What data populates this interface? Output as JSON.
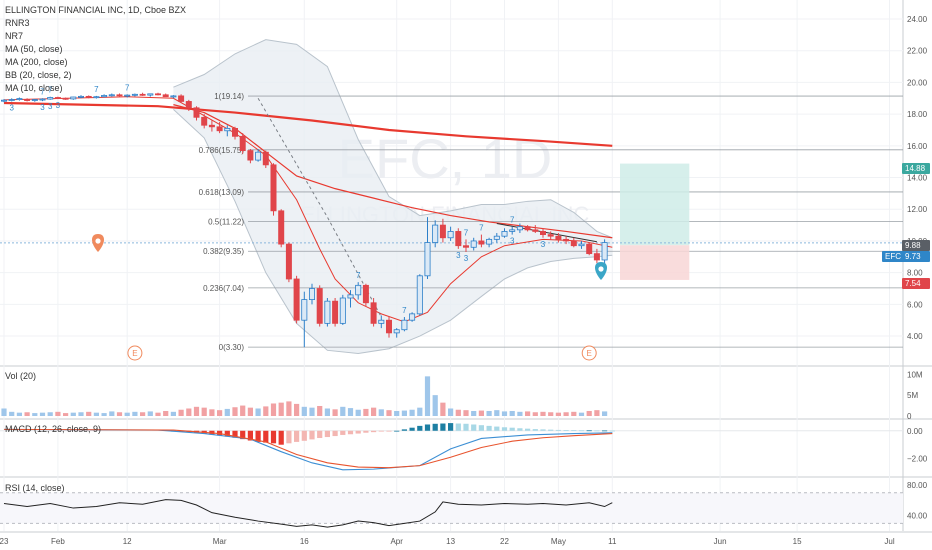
{
  "header": {
    "title": "ELLINGTON FINANCIAL INC, 1D, Cboe BZX",
    "studies": [
      "RNR3",
      "NR7",
      "MA (50, close)",
      "MA (200, close)",
      "BB (20, close, 2)",
      "MA (10, close)"
    ]
  },
  "watermark": {
    "symbol": "EFC, 1D",
    "name": "ELLINGTON FINANCIAL INC"
  },
  "price_labels": {
    "target": "14.88",
    "last": "9.88",
    "symbol": "EFC",
    "symbol_price": "9.73",
    "stop": "7.54"
  },
  "colors": {
    "up": "#2c7fc9",
    "down": "#e0454a",
    "ma_red": "#e8392f",
    "bb_fill": "#e9eef3",
    "target_fill": "#cfece8",
    "stop_fill": "#f8d6d6",
    "macd_line": "#3d8fd4",
    "signal_line": "#e8542e",
    "rsi_line": "#222222",
    "event_marker": "#f08a5d",
    "alert_marker": "#3aa6c7"
  },
  "volume_panel": {
    "label": "Vol (20)",
    "ticks": [
      "10M",
      "5M",
      "0"
    ]
  },
  "macd_panel": {
    "label": "MACD (12, 26, close, 9)",
    "ticks": [
      "0.00",
      "−2.00"
    ]
  },
  "rsi_panel": {
    "label": "RSI (14, close)",
    "ticks": [
      "80.00",
      "40.00"
    ]
  },
  "markers": {
    "event": "E"
  },
  "chart_data": {
    "type": "candlestick",
    "title": "ELLINGTON FINANCIAL INC, 1D, Cboe BZX",
    "price_axis": {
      "ticks": [
        "24.00",
        "22.00",
        "20.00",
        "18.00",
        "16.00",
        "14.00",
        "12.00",
        "10.00",
        "8.00",
        "6.00",
        "4.00"
      ],
      "ylim": [
        2.3,
        25.2
      ]
    },
    "x_ticks": [
      {
        "label": "23",
        "day": 0
      },
      {
        "label": "Feb",
        "day": 7
      },
      {
        "label": "12",
        "day": 16
      },
      {
        "label": "Mar",
        "day": 28
      },
      {
        "label": "16",
        "day": 39
      },
      {
        "label": "Apr",
        "day": 51
      },
      {
        "label": "13",
        "day": 58
      },
      {
        "label": "22",
        "day": 65
      },
      {
        "label": "May",
        "day": 72
      },
      {
        "label": "11",
        "day": 79
      },
      {
        "label": "Jun",
        "day": 93
      },
      {
        "label": "15",
        "day": 103
      },
      {
        "label": "Jul",
        "day": 115
      }
    ],
    "candles": [
      [
        18.85,
        18.95,
        18.75,
        18.88
      ],
      [
        18.9,
        19.0,
        18.8,
        18.92
      ],
      [
        18.95,
        19.05,
        18.85,
        18.98
      ],
      [
        18.92,
        19.0,
        18.8,
        18.87
      ],
      [
        18.87,
        18.96,
        18.78,
        18.92
      ],
      [
        18.9,
        19.0,
        18.82,
        18.95
      ],
      [
        18.95,
        19.1,
        18.9,
        19.05
      ],
      [
        19.05,
        19.1,
        18.95,
        19.0
      ],
      [
        19.0,
        19.05,
        18.9,
        18.96
      ],
      [
        18.96,
        19.1,
        18.9,
        19.08
      ],
      [
        19.08,
        19.2,
        19.0,
        19.12
      ],
      [
        19.12,
        19.18,
        19.0,
        19.05
      ],
      [
        19.05,
        19.15,
        18.98,
        19.1
      ],
      [
        19.1,
        19.25,
        19.05,
        19.18
      ],
      [
        19.18,
        19.3,
        19.1,
        19.22
      ],
      [
        19.22,
        19.3,
        19.12,
        19.16
      ],
      [
        19.16,
        19.25,
        19.05,
        19.2
      ],
      [
        19.2,
        19.3,
        19.12,
        19.25
      ],
      [
        19.25,
        19.35,
        19.15,
        19.2
      ],
      [
        19.2,
        19.3,
        19.1,
        19.28
      ],
      [
        19.28,
        19.35,
        19.18,
        19.22
      ],
      [
        19.22,
        19.3,
        19.08,
        19.1
      ],
      [
        19.1,
        19.2,
        19.0,
        19.15
      ],
      [
        19.15,
        19.25,
        18.7,
        18.8
      ],
      [
        18.8,
        18.9,
        18.2,
        18.4
      ],
      [
        18.4,
        18.5,
        17.6,
        17.8
      ],
      [
        17.8,
        18.0,
        17.1,
        17.3
      ],
      [
        17.3,
        17.6,
        16.9,
        17.2
      ],
      [
        17.2,
        17.5,
        16.8,
        16.95
      ],
      [
        16.95,
        17.3,
        16.6,
        17.1
      ],
      [
        17.1,
        17.2,
        16.4,
        16.6
      ],
      [
        16.6,
        16.8,
        15.5,
        15.7
      ],
      [
        15.7,
        15.8,
        14.9,
        15.1
      ],
      [
        15.1,
        15.8,
        15.0,
        15.6
      ],
      [
        15.6,
        15.7,
        14.6,
        14.8
      ],
      [
        14.8,
        14.9,
        11.6,
        11.9
      ],
      [
        11.9,
        12.0,
        9.6,
        9.8
      ],
      [
        9.8,
        9.9,
        7.4,
        7.6
      ],
      [
        7.6,
        7.8,
        4.8,
        5.0
      ],
      [
        5.0,
        6.8,
        3.3,
        6.3
      ],
      [
        6.3,
        7.3,
        6.0,
        7.0
      ],
      [
        7.0,
        7.2,
        4.6,
        4.8
      ],
      [
        4.8,
        6.4,
        4.6,
        6.2
      ],
      [
        6.2,
        6.4,
        4.6,
        4.8
      ],
      [
        4.8,
        6.6,
        4.7,
        6.4
      ],
      [
        6.4,
        6.9,
        5.8,
        6.6
      ],
      [
        6.6,
        7.4,
        6.3,
        7.2
      ],
      [
        7.2,
        7.3,
        5.9,
        6.1
      ],
      [
        6.1,
        6.4,
        4.6,
        4.8
      ],
      [
        4.8,
        5.3,
        4.5,
        5.0
      ],
      [
        5.0,
        5.2,
        3.9,
        4.2
      ],
      [
        4.2,
        4.5,
        3.9,
        4.4
      ],
      [
        4.4,
        5.2,
        4.3,
        5.0
      ],
      [
        5.0,
        5.5,
        4.9,
        5.4
      ],
      [
        5.4,
        7.9,
        5.3,
        7.8
      ],
      [
        7.8,
        11.5,
        7.6,
        9.9
      ],
      [
        9.9,
        11.3,
        9.6,
        11.0
      ],
      [
        11.0,
        11.4,
        9.9,
        10.2
      ],
      [
        10.2,
        10.9,
        10.0,
        10.6
      ],
      [
        10.6,
        10.8,
        9.5,
        9.7
      ],
      [
        9.7,
        10.1,
        9.3,
        9.6
      ],
      [
        9.6,
        10.2,
        9.4,
        10.0
      ],
      [
        10.0,
        10.4,
        9.6,
        9.8
      ],
      [
        9.8,
        10.2,
        9.6,
        10.1
      ],
      [
        10.1,
        10.5,
        9.9,
        10.3
      ],
      [
        10.3,
        10.8,
        10.2,
        10.6
      ],
      [
        10.6,
        10.9,
        10.4,
        10.7
      ],
      [
        10.7,
        11.1,
        10.5,
        10.9
      ],
      [
        10.9,
        11.0,
        10.6,
        10.7
      ],
      [
        10.7,
        11.0,
        10.5,
        10.6
      ],
      [
        10.6,
        10.8,
        10.2,
        10.4
      ],
      [
        10.4,
        10.6,
        10.1,
        10.3
      ],
      [
        10.3,
        10.5,
        9.9,
        10.1
      ],
      [
        10.1,
        10.3,
        9.8,
        10.0
      ],
      [
        10.0,
        10.2,
        9.6,
        9.7
      ],
      [
        9.7,
        10.0,
        9.5,
        9.8
      ],
      [
        9.8,
        9.9,
        9.1,
        9.2
      ],
      [
        9.2,
        9.5,
        8.6,
        8.8
      ],
      [
        8.8,
        10.1,
        8.4,
        9.9
      ]
    ],
    "lines": {
      "ma_long": [
        [
          0,
          18.7
        ],
        [
          20,
          18.5
        ],
        [
          30,
          18.1
        ],
        [
          40,
          17.6
        ],
        [
          50,
          17.0
        ],
        [
          60,
          16.6
        ],
        [
          70,
          16.3
        ],
        [
          79,
          16.0
        ]
      ],
      "ma_short": [
        [
          0,
          18.9
        ],
        [
          16,
          19.1
        ],
        [
          22,
          19.0
        ],
        [
          26,
          17.9
        ],
        [
          30,
          16.8
        ],
        [
          34,
          15.4
        ],
        [
          38,
          12.6
        ],
        [
          41,
          9.5
        ],
        [
          43,
          7.6
        ],
        [
          46,
          6.1
        ],
        [
          49,
          5.4
        ],
        [
          52,
          4.9
        ],
        [
          55,
          5.5
        ],
        [
          58,
          7.3
        ],
        [
          62,
          9.0
        ],
        [
          65,
          9.7
        ],
        [
          70,
          10.1
        ],
        [
          75,
          10.0
        ],
        [
          79,
          9.6
        ]
      ],
      "ma_50": [
        [
          22,
          18.6
        ],
        [
          26,
          18.1
        ],
        [
          30,
          17.1
        ],
        [
          34,
          15.6
        ],
        [
          38,
          14.1
        ],
        [
          43,
          13.3
        ],
        [
          48,
          12.7
        ],
        [
          53,
          12.1
        ],
        [
          58,
          11.6
        ],
        [
          63,
          11.2
        ],
        [
          68,
          10.9
        ],
        [
          73,
          10.6
        ],
        [
          79,
          10.2
        ]
      ],
      "bb_upper": [
        [
          22,
          19.7
        ],
        [
          26,
          20.5
        ],
        [
          30,
          21.8
        ],
        [
          34,
          22.7
        ],
        [
          38,
          22.4
        ],
        [
          42,
          21.0
        ],
        [
          46,
          16.4
        ],
        [
          50,
          12.8
        ],
        [
          54,
          11.6
        ],
        [
          58,
          11.9
        ],
        [
          62,
          12.3
        ],
        [
          65,
          12.3
        ],
        [
          68,
          12.5
        ],
        [
          71,
          12.6
        ],
        [
          74,
          11.8
        ],
        [
          77,
          10.6
        ],
        [
          79,
          10.2
        ]
      ],
      "bb_lower": [
        [
          22,
          18.3
        ],
        [
          26,
          16.5
        ],
        [
          30,
          12.5
        ],
        [
          34,
          8.0
        ],
        [
          38,
          4.8
        ],
        [
          42,
          3.1
        ],
        [
          46,
          2.9
        ],
        [
          50,
          3.2
        ],
        [
          54,
          4.0
        ],
        [
          58,
          5.0
        ],
        [
          62,
          6.5
        ],
        [
          65,
          7.6
        ],
        [
          68,
          8.3
        ],
        [
          71,
          8.7
        ],
        [
          74,
          8.9
        ],
        [
          77,
          9.0
        ],
        [
          79,
          9.1
        ]
      ],
      "trend_dashed": [
        [
          33,
          19.0
        ],
        [
          42,
          11.5
        ],
        [
          49,
          5.2
        ]
      ],
      "resistance": [
        [
          64,
          11.1
        ],
        [
          77,
          9.95
        ]
      ]
    },
    "fibonacci": [
      {
        "label": "1(19.14)",
        "value": 19.14
      },
      {
        "label": "0.786(15.75)",
        "value": 15.75
      },
      {
        "label": "0.618(13.09)",
        "value": 13.09
      },
      {
        "label": "0.5(11.22)",
        "value": 11.22
      },
      {
        "label": "0.382(9.35)",
        "value": 9.35
      },
      {
        "label": "0.236(7.04)",
        "value": 7.04
      },
      {
        "label": "0(3.30)",
        "value": 3.3
      }
    ],
    "position": {
      "entry": 9.73,
      "target": 14.88,
      "stop": 7.54,
      "from_day": 80,
      "to_day": 89
    },
    "candle_numbers": [
      {
        "day": 1,
        "text": "3",
        "pos": "below"
      },
      {
        "day": 5,
        "text": "3",
        "pos": "below"
      },
      {
        "day": 6,
        "text": "3",
        "pos": "below"
      },
      {
        "day": 7,
        "text": "3",
        "pos": "below"
      },
      {
        "day": 5,
        "text": "7",
        "pos": "above"
      },
      {
        "day": 6,
        "text": "7",
        "pos": "above"
      },
      {
        "day": 12,
        "text": "7",
        "pos": "above"
      },
      {
        "day": 16,
        "text": "7",
        "pos": "above"
      },
      {
        "day": 46,
        "text": "7",
        "pos": "above"
      },
      {
        "day": 52,
        "text": "7",
        "pos": "above"
      },
      {
        "day": 59,
        "text": "3",
        "pos": "below"
      },
      {
        "day": 60,
        "text": "3",
        "pos": "below"
      },
      {
        "day": 60,
        "text": "7",
        "pos": "above"
      },
      {
        "day": 62,
        "text": "7",
        "pos": "above"
      },
      {
        "day": 66,
        "text": "3",
        "pos": "below"
      },
      {
        "day": 66,
        "text": "7",
        "pos": "above"
      },
      {
        "day": 70,
        "text": "3",
        "pos": "below"
      }
    ],
    "volume_m": [
      1.8,
      1.0,
      0.8,
      0.9,
      0.7,
      0.8,
      0.9,
      1.0,
      0.7,
      0.8,
      0.9,
      1.0,
      0.8,
      0.7,
      1.1,
      0.9,
      0.8,
      1.0,
      0.9,
      1.1,
      0.8,
      1.2,
      1.0,
      1.5,
      1.8,
      2.2,
      2.0,
      1.6,
      1.4,
      1.7,
      2.1,
      2.5,
      2.0,
      1.8,
      2.3,
      3.0,
      3.2,
      3.5,
      2.9,
      2.2,
      2.0,
      2.4,
      1.8,
      1.6,
      2.2,
      1.9,
      1.5,
      1.7,
      2.0,
      1.6,
      1.4,
      1.2,
      1.3,
      1.5,
      2.0,
      9.5,
      5.0,
      3.2,
      1.8,
      1.5,
      1.4,
      1.2,
      1.3,
      1.2,
      1.4,
      1.1,
      1.2,
      1.0,
      1.1,
      0.9,
      1.0,
      0.9,
      0.8,
      0.9,
      1.0,
      0.8,
      1.2,
      1.4,
      1.1
    ],
    "macd_ylim": [
      -3.1,
      0.7
    ],
    "macd_hist_days": [
      22,
      79
    ],
    "macd_hist": [
      0.0,
      -0.05,
      -0.1,
      -0.15,
      -0.2,
      -0.28,
      -0.35,
      -0.42,
      -0.5,
      -0.6,
      -0.7,
      -0.8,
      -0.85,
      -0.9,
      -1.0,
      -0.9,
      -0.8,
      -0.72,
      -0.62,
      -0.52,
      -0.45,
      -0.38,
      -0.3,
      -0.25,
      -0.2,
      -0.14,
      -0.1,
      -0.05,
      -0.02,
      0.0,
      0.1,
      0.22,
      0.35,
      0.45,
      0.5,
      0.52,
      0.55,
      0.52,
      0.5,
      0.45,
      0.4,
      0.35,
      0.3,
      0.25,
      0.22,
      0.18,
      0.15,
      0.12,
      0.1,
      0.08,
      0.06,
      0.05,
      0.04,
      0.03,
      0.03,
      0.02,
      0.02,
      0.01
    ],
    "macd_line": [
      [
        0,
        0.1
      ],
      [
        20,
        0.05
      ],
      [
        26,
        -0.2
      ],
      [
        32,
        -0.6
      ],
      [
        36,
        -1.5
      ],
      [
        40,
        -2.3
      ],
      [
        44,
        -2.8
      ],
      [
        48,
        -2.75
      ],
      [
        54,
        -2.5
      ],
      [
        58,
        -1.3
      ],
      [
        62,
        -0.55
      ],
      [
        68,
        -0.3
      ],
      [
        74,
        -0.2
      ],
      [
        79,
        -0.15
      ]
    ],
    "signal_line": [
      [
        0,
        0.1
      ],
      [
        22,
        0.05
      ],
      [
        28,
        -0.2
      ],
      [
        34,
        -0.8
      ],
      [
        38,
        -1.7
      ],
      [
        42,
        -2.3
      ],
      [
        46,
        -2.6
      ],
      [
        50,
        -2.65
      ],
      [
        54,
        -2.5
      ],
      [
        58,
        -1.9
      ],
      [
        62,
        -1.2
      ],
      [
        66,
        -0.75
      ],
      [
        70,
        -0.5
      ],
      [
        74,
        -0.35
      ],
      [
        79,
        -0.2
      ]
    ],
    "rsi_ylim": [
      20,
      88
    ],
    "rsi": [
      [
        0,
        56
      ],
      [
        3,
        52
      ],
      [
        6,
        56
      ],
      [
        9,
        50
      ],
      [
        12,
        52
      ],
      [
        15,
        57
      ],
      [
        18,
        55
      ],
      [
        21,
        61
      ],
      [
        23,
        60
      ],
      [
        25,
        54
      ],
      [
        27,
        44
      ],
      [
        30,
        38
      ],
      [
        33,
        33
      ],
      [
        36,
        29
      ],
      [
        38,
        26
      ],
      [
        40,
        28
      ],
      [
        42,
        25
      ],
      [
        44,
        28
      ],
      [
        46,
        33
      ],
      [
        48,
        31
      ],
      [
        50,
        27
      ],
      [
        52,
        30
      ],
      [
        54,
        33
      ],
      [
        56,
        45
      ],
      [
        57,
        58
      ],
      [
        59,
        55
      ],
      [
        62,
        54
      ],
      [
        65,
        56
      ],
      [
        68,
        55
      ],
      [
        70,
        56
      ],
      [
        73,
        54
      ],
      [
        76,
        57
      ],
      [
        78,
        52
      ],
      [
        79,
        57
      ]
    ],
    "rsi_levels": [
      70,
      30
    ]
  }
}
